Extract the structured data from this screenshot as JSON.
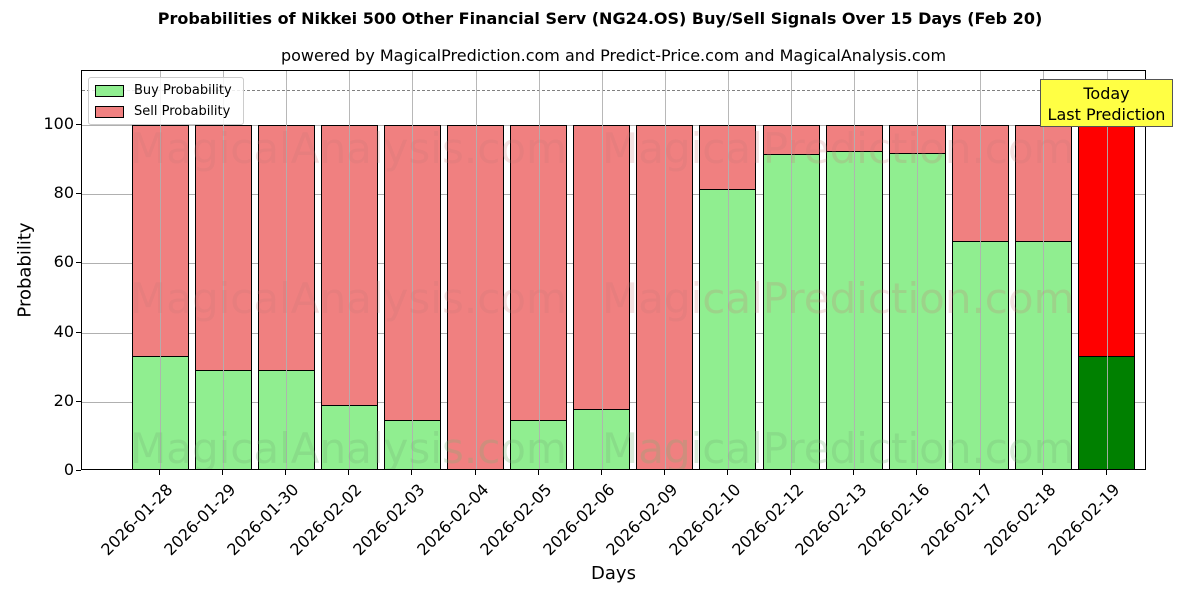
{
  "title": "Probabilities of Nikkei 500 Other Financial Serv (NG24.OS) Buy/Sell Signals Over 15 Days (Feb 20)",
  "subtitle": "powered by MagicalPrediction.com and Predict-Price.com and MagicalAnalysis.com",
  "xlabel": "Days",
  "ylabel": "Probability",
  "legend": {
    "buy_label": "Buy Probability",
    "sell_label": "Sell Probability"
  },
  "annotation": {
    "line1": "Today",
    "line2": "Last Prediction"
  },
  "watermarks": [
    "MagicalAnalysis.com",
    "MagicalPrediction.com"
  ],
  "colors": {
    "buy": "#90ee90",
    "sell": "#f08080",
    "today_buy": "#008000",
    "today_sell": "#ff0000",
    "annotation_bg": "#ffff44",
    "grid": "#b0b0b0",
    "refline": "#808080"
  },
  "chart_data": {
    "type": "bar",
    "stacked": true,
    "title": "Probabilities of Nikkei 500 Other Financial Serv (NG24.OS) Buy/Sell Signals Over 15 Days (Feb 20)",
    "subtitle": "powered by MagicalPrediction.com and Predict-Price.com and MagicalAnalysis.com",
    "xlabel": "Days",
    "ylabel": "Probability",
    "ylim": [
      0,
      115
    ],
    "yticks": [
      0,
      20,
      40,
      60,
      80,
      100
    ],
    "grid": true,
    "legend_position": "upper left",
    "reference_line": {
      "y": 110,
      "style": "dashed",
      "color": "#808080"
    },
    "categories": [
      "2026-01-28",
      "2026-01-29",
      "2026-01-30",
      "2026-02-02",
      "2026-02-03",
      "2026-02-04",
      "2026-02-05",
      "2026-02-06",
      "2026-02-09",
      "2026-02-10",
      "2026-02-12",
      "2026-02-13",
      "2026-02-16",
      "2026-02-17",
      "2026-02-18",
      "2026-02-19"
    ],
    "series": [
      {
        "name": "Buy Probability",
        "values": [
          33.2,
          29.3,
          29.3,
          19.2,
          14.7,
          0,
          14.7,
          17.9,
          0,
          81.4,
          91.6,
          92.5,
          91.9,
          66.6,
          66.6,
          33.2
        ]
      },
      {
        "name": "Sell Probability",
        "values": [
          66.8,
          70.7,
          70.7,
          80.8,
          85.3,
          100,
          85.3,
          82.1,
          100,
          18.6,
          8.4,
          7.5,
          8.1,
          33.4,
          33.4,
          66.8
        ]
      }
    ],
    "highlight": {
      "category": "2026-02-19",
      "label": "Today\nLast Prediction"
    }
  }
}
